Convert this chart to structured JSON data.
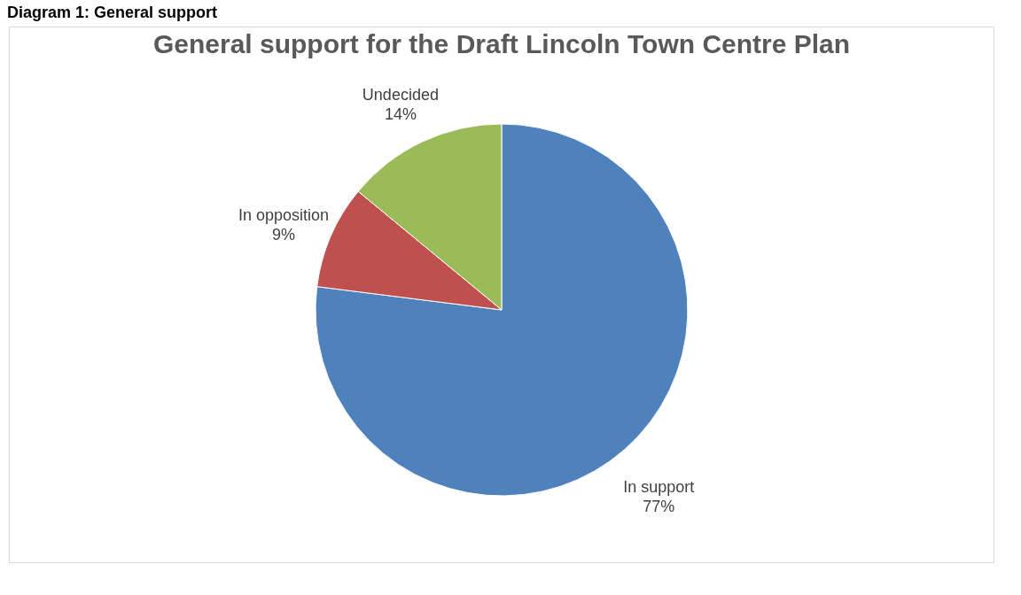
{
  "chart_data": {
    "type": "pie",
    "title": "General support for the Draft Lincoln Town Centre Plan",
    "annotations": [
      "Diagram 1: General support"
    ],
    "categories": [
      "In support",
      "In opposition",
      "Undecided"
    ],
    "values": [
      77,
      9,
      14
    ],
    "value_labels": [
      "77%",
      "9%",
      "14%"
    ],
    "colors": [
      "#4f81bd",
      "#c0504d",
      "#9bbb59"
    ],
    "legend": false
  }
}
